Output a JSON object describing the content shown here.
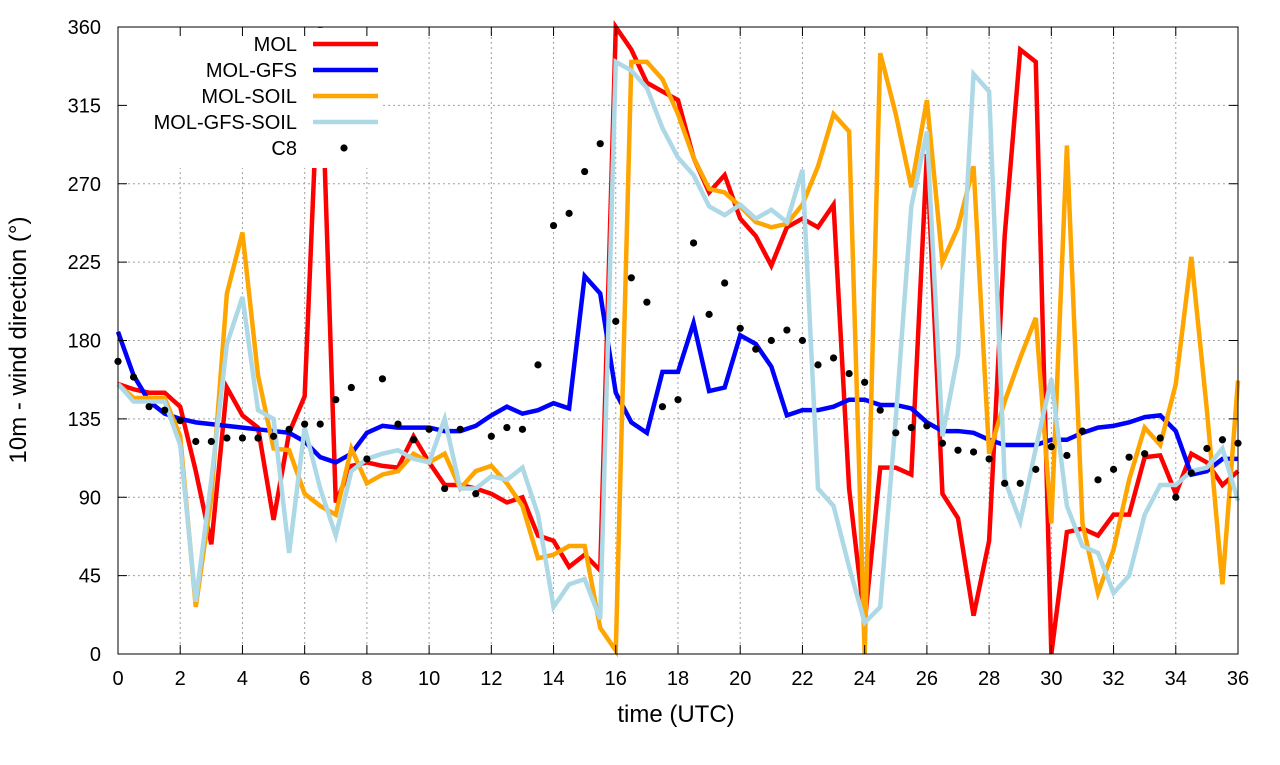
{
  "chart_data": {
    "type": "line",
    "title": "",
    "xlabel": "time (UTC)",
    "ylabel": "10m - wind direction (°)",
    "xlim": [
      0,
      36
    ],
    "ylim": [
      0,
      360
    ],
    "xticks": [
      0,
      2,
      4,
      6,
      8,
      10,
      12,
      14,
      16,
      18,
      20,
      22,
      24,
      26,
      28,
      30,
      32,
      34,
      36
    ],
    "yticks": [
      0,
      45,
      90,
      135,
      180,
      225,
      270,
      315,
      360
    ],
    "grid": true,
    "legend_position": "top-left",
    "x_step": 0.5,
    "series": [
      {
        "name": "MOL",
        "color": "#ff0000",
        "style": "line",
        "values": [
          155,
          152,
          150,
          150,
          142,
          105,
          63,
          153,
          137,
          130,
          77,
          127,
          148,
          360,
          87,
          108,
          110,
          108,
          107,
          125,
          110,
          97,
          97,
          95,
          92,
          87,
          90,
          68,
          65,
          50,
          57,
          48,
          360,
          347,
          328,
          323,
          318,
          285,
          265,
          275,
          250,
          240,
          223,
          245,
          250,
          245,
          258,
          95,
          18,
          107,
          107,
          103,
          287,
          92,
          78,
          22,
          65,
          240,
          347,
          340,
          0,
          70,
          72,
          68,
          80,
          80,
          113,
          114,
          92,
          115,
          110,
          97,
          105
        ]
      },
      {
        "name": "MOL-GFS",
        "color": "#0000ff",
        "style": "line",
        "values": [
          185,
          160,
          145,
          138,
          135,
          133,
          132,
          131,
          130,
          129,
          128,
          127,
          122,
          113,
          110,
          115,
          127,
          131,
          130,
          130,
          130,
          128,
          128,
          131,
          137,
          142,
          138,
          140,
          144,
          141,
          217,
          207,
          150,
          133,
          127,
          162,
          162,
          190,
          151,
          153,
          183,
          178,
          165,
          137,
          140,
          140,
          142,
          146,
          146,
          143,
          143,
          141,
          133,
          128,
          128,
          127,
          123,
          120,
          120,
          120,
          123,
          123,
          127,
          130,
          131,
          133,
          136,
          137,
          128,
          103,
          105,
          112,
          112
        ]
      },
      {
        "name": "MOL-SOIL",
        "color": "#ffa500",
        "style": "line",
        "values": [
          155,
          147,
          147,
          147,
          125,
          27,
          90,
          207,
          242,
          160,
          118,
          117,
          92,
          85,
          80,
          118,
          98,
          103,
          105,
          115,
          110,
          115,
          95,
          105,
          108,
          98,
          85,
          55,
          57,
          62,
          62,
          15,
          2,
          340,
          340,
          330,
          310,
          285,
          267,
          265,
          257,
          248,
          245,
          247,
          258,
          280,
          310,
          300,
          0,
          345,
          310,
          268,
          318,
          225,
          245,
          280,
          115,
          145,
          170,
          193,
          75,
          292,
          75,
          35,
          60,
          100,
          130,
          120,
          155,
          228,
          140,
          40,
          157
        ]
      },
      {
        "name": "MOL-GFS-SOIL",
        "color": "#add8e6",
        "style": "line",
        "values": [
          155,
          145,
          145,
          145,
          120,
          30,
          100,
          178,
          205,
          140,
          135,
          58,
          130,
          95,
          68,
          105,
          112,
          115,
          117,
          112,
          110,
          135,
          95,
          95,
          102,
          100,
          107,
          80,
          27,
          40,
          43,
          20,
          340,
          335,
          325,
          302,
          285,
          275,
          257,
          252,
          258,
          250,
          255,
          248,
          278,
          95,
          85,
          50,
          18,
          27,
          135,
          257,
          300,
          125,
          172,
          333,
          323,
          100,
          76,
          118,
          158,
          85,
          62,
          58,
          35,
          45,
          80,
          97,
          97,
          105,
          107,
          118,
          88
        ]
      },
      {
        "name": "C8",
        "color": "#000000",
        "style": "points",
        "values": [
          168,
          159,
          142,
          140,
          134,
          122,
          122,
          124,
          124,
          124,
          125,
          129,
          132,
          132,
          146,
          153,
          112,
          158,
          132,
          123,
          129,
          95,
          129,
          92,
          125,
          130,
          129,
          166,
          246,
          253,
          277,
          293,
          191,
          216,
          202,
          142,
          146,
          236,
          195,
          213,
          187,
          175,
          180,
          186,
          180,
          166,
          170,
          161,
          156,
          140,
          127,
          130,
          131,
          121,
          117,
          116,
          112,
          98,
          98,
          106,
          119,
          114,
          128,
          100,
          106,
          113,
          115,
          124,
          90,
          104,
          118,
          123,
          121
        ]
      }
    ]
  }
}
